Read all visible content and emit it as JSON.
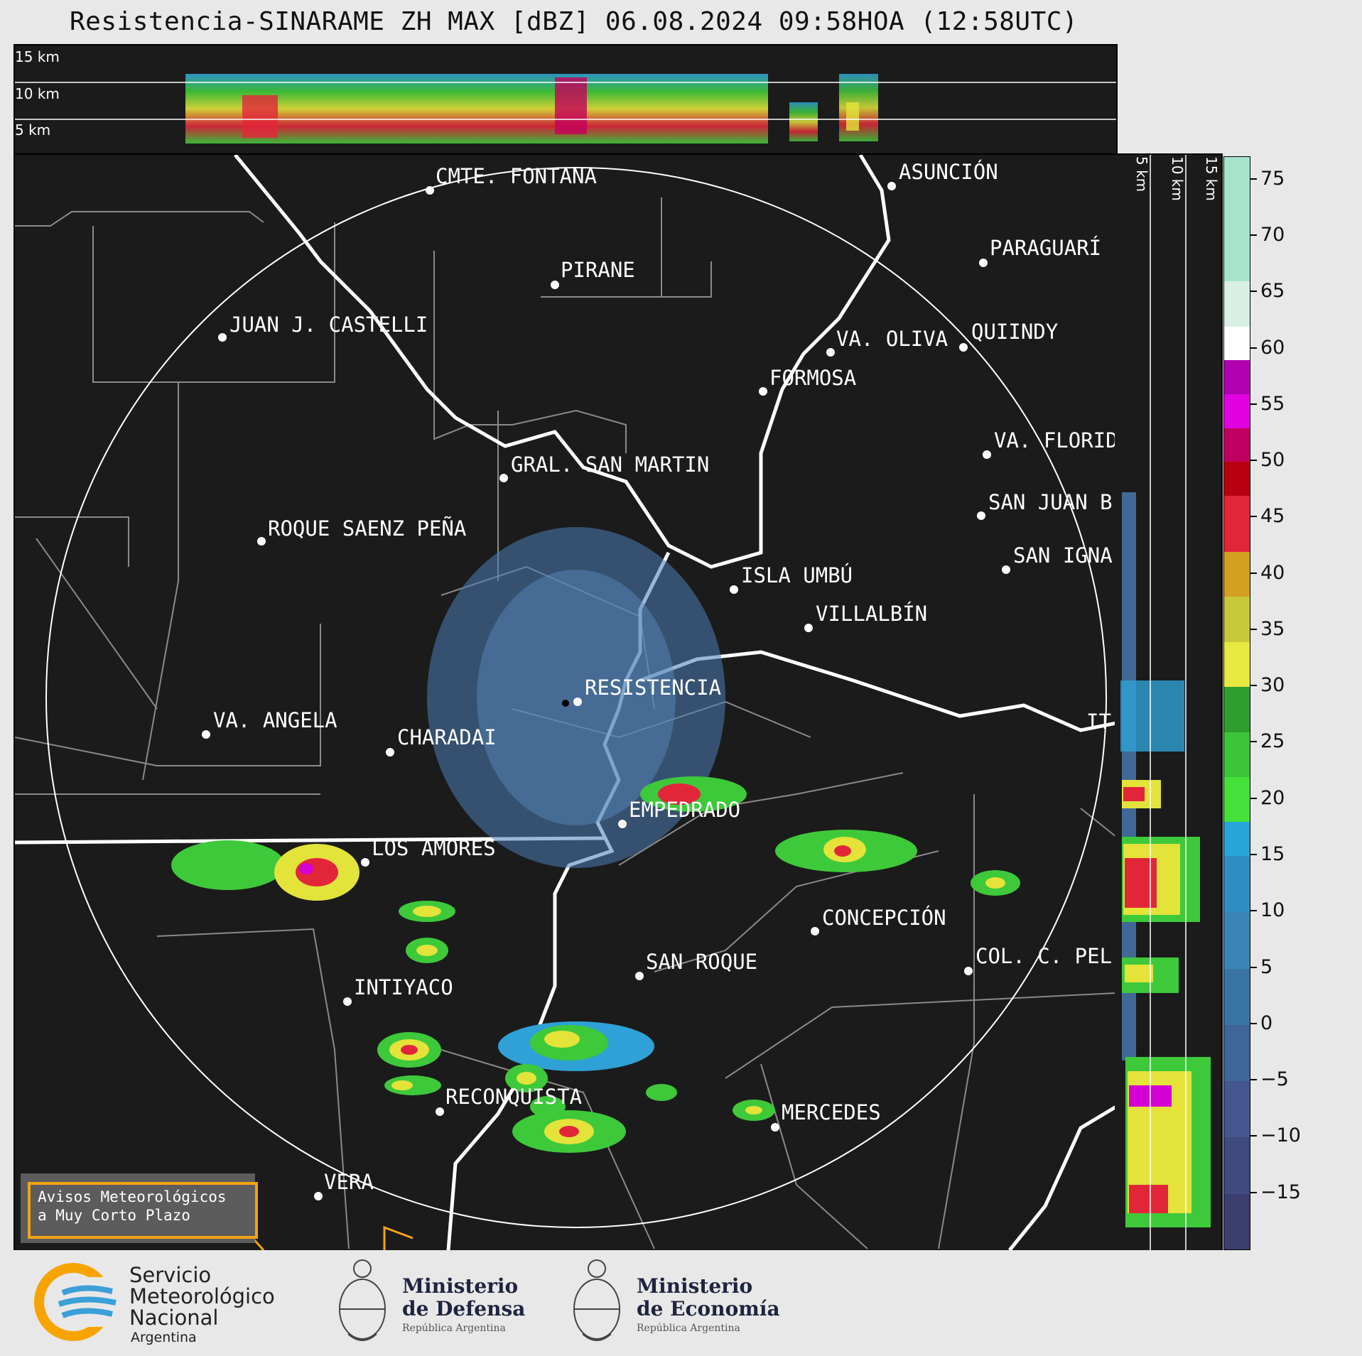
{
  "header": {
    "title": "Resistencia-SINARAME ZH MAX [dBZ] 06.08.2024 09:58HOA (12:58UTC)"
  },
  "top_panel": {
    "altitudes": [
      "15 km",
      "10 km",
      "5 km"
    ]
  },
  "side_panel": {
    "altitudes": [
      "5 km",
      "10 km",
      "15 km"
    ]
  },
  "colorbar": {
    "ticks": [
      "75",
      "70",
      "65",
      "60",
      "55",
      "50",
      "45",
      "40",
      "35",
      "30",
      "25",
      "20",
      "15",
      "10",
      "5",
      "0",
      "−5",
      "−10",
      "−15"
    ],
    "tick_values": [
      75,
      70,
      65,
      60,
      55,
      50,
      45,
      40,
      35,
      30,
      25,
      20,
      15,
      10,
      5,
      0,
      -5,
      -10,
      -15
    ],
    "range": [
      -20,
      77
    ]
  },
  "cities": [
    {
      "name": "CMTE. FONTANA"
    },
    {
      "name": "PIRANE"
    },
    {
      "name": "JUAN J. CASTELLI"
    },
    {
      "name": "ASUNCIÓN"
    },
    {
      "name": "PARAGUARÍ"
    },
    {
      "name": "VA. OLIVA"
    },
    {
      "name": "QUIINDY"
    },
    {
      "name": "FORMOSA"
    },
    {
      "name": "VA. FLORIDA"
    },
    {
      "name": "GRAL. SAN MARTIN"
    },
    {
      "name": "SAN JUAN B"
    },
    {
      "name": "ROQUE SAENZ PEÑA"
    },
    {
      "name": "SAN IGNA"
    },
    {
      "name": "ISLA UMBÚ"
    },
    {
      "name": "VILLALBÍN"
    },
    {
      "name": "RESISTENCIA"
    },
    {
      "name": "VA. ANGELA"
    },
    {
      "name": "CHARADAI"
    },
    {
      "name": "IT"
    },
    {
      "name": "EMPEDRADO"
    },
    {
      "name": "LOS AMORES"
    },
    {
      "name": "CONCEPCIÓN"
    },
    {
      "name": "SAN ROQUE"
    },
    {
      "name": "COL. C. PEL"
    },
    {
      "name": "INTIYACO"
    },
    {
      "name": "RECONQUISTA"
    },
    {
      "name": "MERCEDES"
    },
    {
      "name": "VERA"
    }
  ],
  "warning": {
    "line1": "Avisos Meteorológicos",
    "line2": "a Muy Corto Plazo"
  },
  "footer": {
    "smn_line1": "Servicio",
    "smn_line2": "Meteorológico",
    "smn_line3": "Nacional",
    "smn_line4": "Argentina",
    "def_line1": "Ministerio",
    "def_line2": "de Defensa",
    "def_sub": "República Argentina",
    "eco_line1": "Ministerio",
    "eco_line2": "de Economía",
    "eco_sub": "República Argentina"
  },
  "colors": {
    "background": "#1b1b1b",
    "range_ring": "#ffffff",
    "rivers": "#ffffff",
    "borders": "#8a8a8a",
    "warning_border": "#f5a312"
  }
}
